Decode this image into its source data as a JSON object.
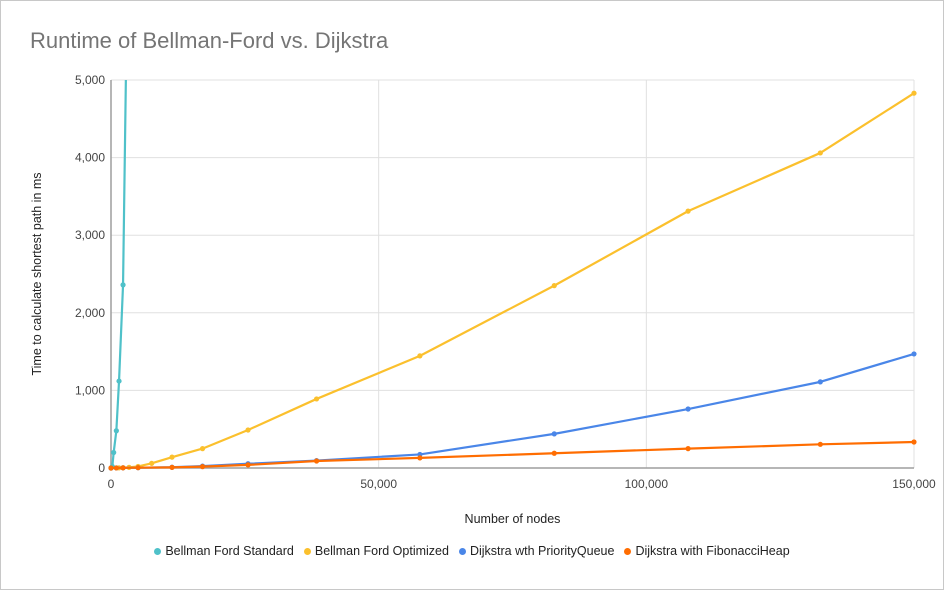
{
  "chart_data": {
    "type": "line",
    "title": "Runtime of Bellman-Ford vs. Dijkstra",
    "xlabel": "Number of nodes",
    "ylabel": "Time to calculate shortest path in ms",
    "xlim": [
      0,
      150000
    ],
    "ylim": [
      0,
      5000
    ],
    "xticks": [
      0,
      50000,
      100000,
      150000
    ],
    "xtick_labels": [
      "0",
      "50,000",
      "100,000",
      "150,000"
    ],
    "yticks": [
      0,
      1000,
      2000,
      3000,
      4000,
      5000
    ],
    "ytick_labels": [
      "0",
      "1,000",
      "2,000",
      "3,000",
      "4,000",
      "5,000"
    ],
    "grid": true,
    "legend_position": "bottom",
    "series": [
      {
        "name": "Bellman Ford Standard",
        "color": "#4fc1c9",
        "x": [
          0,
          250,
          500,
          1000,
          1500,
          2250,
          3375
        ],
        "y": [
          0,
          20,
          200,
          480,
          1120,
          2360,
          8000
        ]
      },
      {
        "name": "Bellman Ford Optimized",
        "color": "#fbc02d",
        "x": [
          0,
          1000,
          1500,
          2250,
          3375,
          5060,
          7600,
          11400,
          17100,
          25600,
          38400,
          57700,
          82800,
          107800,
          132500,
          150000
        ],
        "y": [
          0,
          1,
          2,
          4,
          8,
          20,
          60,
          140,
          250,
          490,
          890,
          1445,
          2350,
          3310,
          4060,
          4830
        ]
      },
      {
        "name": "Dijkstra wth PriorityQueue",
        "color": "#4a86e8",
        "x": [
          0,
          1000,
          2250,
          5060,
          11400,
          17100,
          25600,
          38400,
          57700,
          82800,
          107800,
          132500,
          150000
        ],
        "y": [
          0,
          1,
          2,
          4,
          10,
          25,
          55,
          95,
          175,
          440,
          760,
          1110,
          1470
        ]
      },
      {
        "name": "Dijkstra with FibonacciHeap",
        "color": "#ff6d01",
        "x": [
          0,
          1000,
          2250,
          5060,
          11400,
          17100,
          25600,
          38400,
          57700,
          82800,
          107800,
          132500,
          150000
        ],
        "y": [
          0,
          1,
          2,
          4,
          8,
          18,
          40,
          90,
          130,
          190,
          250,
          305,
          335
        ]
      }
    ]
  }
}
